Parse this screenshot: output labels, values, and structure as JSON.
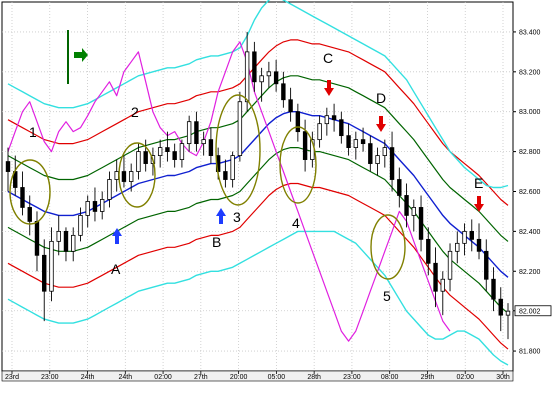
{
  "chart_data": {
    "type": "candlestick",
    "y_axis_ticks": [
      "83.400",
      "83.200",
      "83.000",
      "82.800",
      "82.600",
      "82.400",
      "82.200",
      "82.002",
      "81.800"
    ],
    "ylim": [
      81.7,
      83.55
    ],
    "grid": true,
    "last_price": "82.002",
    "x_axis_ticks": [
      "23rd",
      "23:00",
      "24th",
      "24th",
      "02:00",
      "27th",
      "20:00",
      "05:00",
      "28th",
      "23:00",
      "08:00",
      "29th",
      "02:00",
      "30th"
    ],
    "annotations": [
      "1",
      "2",
      "A",
      "B",
      "3",
      "C",
      "D",
      "4",
      "5",
      "E"
    ],
    "candles": [
      [
        82.75,
        82.82,
        82.6,
        82.7
      ],
      [
        82.7,
        82.78,
        82.58,
        82.62
      ],
      [
        82.62,
        82.7,
        82.48,
        82.52
      ],
      [
        82.52,
        82.58,
        82.38,
        82.45
      ],
      [
        82.45,
        82.5,
        82.2,
        82.28
      ],
      [
        82.28,
        82.36,
        81.95,
        82.1
      ],
      [
        82.1,
        82.42,
        82.05,
        82.35
      ],
      [
        82.35,
        82.48,
        82.28,
        82.4
      ],
      [
        82.4,
        82.42,
        82.25,
        82.3
      ],
      [
        82.3,
        82.42,
        82.25,
        82.38
      ],
      [
        82.38,
        82.52,
        82.35,
        82.48
      ],
      [
        82.48,
        82.58,
        82.42,
        82.55
      ],
      [
        82.55,
        82.62,
        82.45,
        82.5
      ],
      [
        82.5,
        82.6,
        82.46,
        82.56
      ],
      [
        82.56,
        82.7,
        82.52,
        82.66
      ],
      [
        82.66,
        82.76,
        82.6,
        82.7
      ],
      [
        82.7,
        82.78,
        82.62,
        82.65
      ],
      [
        82.65,
        82.74,
        82.6,
        82.7
      ],
      [
        82.7,
        82.84,
        82.66,
        82.8
      ],
      [
        82.8,
        82.86,
        82.7,
        82.74
      ],
      [
        82.74,
        82.82,
        82.68,
        82.78
      ],
      [
        82.78,
        82.86,
        82.72,
        82.82
      ],
      [
        82.82,
        82.9,
        82.75,
        82.8
      ],
      [
        82.8,
        82.84,
        82.72,
        82.76
      ],
      [
        82.76,
        82.86,
        82.72,
        82.84
      ],
      [
        82.84,
        82.98,
        82.8,
        82.95
      ],
      [
        82.95,
        83.0,
        82.8,
        82.84
      ],
      [
        82.84,
        82.9,
        82.78,
        82.86
      ],
      [
        82.86,
        82.92,
        82.74,
        82.78
      ],
      [
        82.78,
        82.82,
        82.66,
        82.7
      ],
      [
        82.7,
        82.76,
        82.62,
        82.66
      ],
      [
        82.66,
        82.8,
        82.62,
        82.78
      ],
      [
        82.78,
        83.1,
        82.75,
        83.05
      ],
      [
        83.05,
        83.4,
        83.0,
        83.3
      ],
      [
        83.3,
        83.35,
        83.1,
        83.15
      ],
      [
        83.15,
        83.22,
        83.05,
        83.18
      ],
      [
        83.18,
        83.25,
        83.12,
        83.2
      ],
      [
        83.2,
        83.26,
        83.1,
        83.14
      ],
      [
        83.14,
        83.2,
        83.02,
        83.06
      ],
      [
        83.06,
        83.12,
        82.95,
        83.0
      ],
      [
        83.0,
        83.04,
        82.85,
        82.9
      ],
      [
        82.9,
        82.96,
        82.7,
        82.76
      ],
      [
        82.76,
        82.9,
        82.72,
        82.86
      ],
      [
        82.86,
        82.98,
        82.82,
        82.94
      ],
      [
        82.94,
        83.02,
        82.88,
        82.98
      ],
      [
        82.98,
        83.04,
        82.9,
        82.96
      ],
      [
        82.96,
        83.0,
        82.84,
        82.88
      ],
      [
        82.88,
        82.94,
        82.78,
        82.82
      ],
      [
        82.82,
        82.9,
        82.76,
        82.86
      ],
      [
        82.86,
        82.92,
        82.8,
        82.84
      ],
      [
        82.84,
        82.88,
        82.7,
        82.74
      ],
      [
        82.74,
        82.82,
        82.68,
        82.78
      ],
      [
        82.78,
        82.86,
        82.72,
        82.82
      ],
      [
        82.82,
        82.9,
        82.6,
        82.66
      ],
      [
        82.66,
        82.72,
        82.52,
        82.58
      ],
      [
        82.58,
        82.64,
        82.42,
        82.48
      ],
      [
        82.48,
        82.56,
        82.4,
        82.52
      ],
      [
        82.52,
        82.58,
        82.3,
        82.36
      ],
      [
        82.36,
        82.42,
        82.18,
        82.24
      ],
      [
        82.24,
        82.32,
        82.02,
        82.1
      ],
      [
        82.1,
        82.2,
        81.98,
        82.16
      ],
      [
        82.16,
        82.34,
        82.1,
        82.3
      ],
      [
        82.3,
        82.4,
        82.24,
        82.34
      ],
      [
        82.34,
        82.44,
        82.28,
        82.4
      ],
      [
        82.4,
        82.46,
        82.3,
        82.36
      ],
      [
        82.36,
        82.44,
        82.26,
        82.3
      ],
      [
        82.3,
        82.36,
        82.1,
        82.16
      ],
      [
        82.16,
        82.22,
        82.0,
        82.06
      ],
      [
        82.06,
        82.12,
        81.9,
        81.98
      ],
      [
        81.98,
        82.04,
        81.86,
        82.0
      ]
    ],
    "series": [
      {
        "values": [
          82.6,
          82.58,
          82.56,
          82.54,
          82.52,
          82.5,
          82.49,
          82.48,
          82.48,
          82.48,
          82.49,
          82.5,
          82.52,
          82.54,
          82.56,
          82.58,
          82.6,
          82.62,
          82.64,
          82.65,
          82.66,
          82.67,
          82.68,
          82.68,
          82.69,
          82.7,
          82.72,
          82.73,
          82.74,
          82.74,
          82.75,
          82.76,
          82.78,
          82.82,
          82.86,
          82.9,
          82.94,
          82.97,
          82.99,
          83.0,
          83.0,
          82.99,
          82.98,
          82.98,
          82.97,
          82.96,
          82.95,
          82.94,
          82.92,
          82.9,
          82.88,
          82.86,
          82.84,
          82.8,
          82.76,
          82.72,
          82.68,
          82.63,
          82.58,
          82.53,
          82.48,
          82.44,
          82.41,
          82.38,
          82.35,
          82.32,
          82.28,
          82.24,
          82.2,
          82.17
        ]
      },
      {
        "values": [
          82.78,
          82.76,
          82.74,
          82.72,
          82.7,
          82.68,
          82.67,
          82.66,
          82.66,
          82.66,
          82.67,
          82.68,
          82.7,
          82.72,
          82.74,
          82.76,
          82.78,
          82.8,
          82.82,
          82.83,
          82.84,
          82.85,
          82.86,
          82.86,
          82.87,
          82.88,
          82.9,
          82.91,
          82.92,
          82.92,
          82.93,
          82.94,
          82.96,
          83.0,
          83.04,
          83.08,
          83.12,
          83.15,
          83.17,
          83.18,
          83.18,
          83.17,
          83.16,
          83.16,
          83.15,
          83.14,
          83.13,
          83.12,
          83.1,
          83.08,
          83.06,
          83.04,
          83.02,
          82.98,
          82.94,
          82.9,
          82.86,
          82.81,
          82.76,
          82.71,
          82.66,
          82.62,
          82.59,
          82.56,
          82.53,
          82.5,
          82.46,
          82.42,
          82.38,
          82.35
        ]
      },
      {
        "values": [
          82.42,
          82.4,
          82.38,
          82.36,
          82.34,
          82.32,
          82.31,
          82.3,
          82.3,
          82.3,
          82.31,
          82.32,
          82.34,
          82.36,
          82.38,
          82.4,
          82.42,
          82.44,
          82.46,
          82.47,
          82.48,
          82.49,
          82.5,
          82.5,
          82.51,
          82.52,
          82.54,
          82.55,
          82.56,
          82.56,
          82.57,
          82.58,
          82.6,
          82.64,
          82.68,
          82.72,
          82.76,
          82.79,
          82.81,
          82.82,
          82.82,
          82.81,
          82.8,
          82.8,
          82.79,
          82.78,
          82.77,
          82.76,
          82.74,
          82.72,
          82.7,
          82.68,
          82.66,
          82.62,
          82.58,
          82.54,
          82.5,
          82.45,
          82.4,
          82.35,
          82.3,
          82.26,
          82.23,
          82.2,
          82.17,
          82.14,
          82.1,
          82.06,
          82.02,
          81.99
        ]
      },
      {
        "values": [
          82.96,
          82.94,
          82.92,
          82.9,
          82.88,
          82.86,
          82.85,
          82.84,
          82.84,
          82.84,
          82.85,
          82.86,
          82.88,
          82.9,
          82.92,
          82.94,
          82.96,
          82.98,
          83.0,
          83.01,
          83.02,
          83.03,
          83.04,
          83.04,
          83.05,
          83.06,
          83.08,
          83.09,
          83.1,
          83.1,
          83.11,
          83.12,
          83.14,
          83.18,
          83.22,
          83.26,
          83.3,
          83.33,
          83.35,
          83.36,
          83.36,
          83.35,
          83.34,
          83.34,
          83.33,
          83.32,
          83.31,
          83.3,
          83.28,
          83.26,
          83.24,
          83.22,
          83.2,
          83.16,
          83.12,
          83.08,
          83.04,
          82.99,
          82.94,
          82.89,
          82.84,
          82.8,
          82.77,
          82.74,
          82.71,
          82.68,
          82.64,
          82.6,
          82.56,
          82.53
        ]
      },
      {
        "values": [
          82.24,
          82.22,
          82.2,
          82.18,
          82.16,
          82.14,
          82.13,
          82.12,
          82.12,
          82.12,
          82.13,
          82.14,
          82.16,
          82.18,
          82.2,
          82.22,
          82.24,
          82.26,
          82.28,
          82.29,
          82.3,
          82.31,
          82.32,
          82.32,
          82.33,
          82.34,
          82.36,
          82.37,
          82.38,
          82.38,
          82.39,
          82.4,
          82.42,
          82.46,
          82.5,
          82.54,
          82.58,
          82.61,
          82.63,
          82.64,
          82.64,
          82.63,
          82.62,
          82.62,
          82.61,
          82.6,
          82.59,
          82.58,
          82.56,
          82.54,
          82.52,
          82.5,
          82.48,
          82.44,
          82.4,
          82.36,
          82.32,
          82.27,
          82.22,
          82.17,
          82.12,
          82.08,
          82.05,
          82.02,
          81.99,
          81.96,
          81.92,
          81.88,
          81.84,
          81.81
        ]
      },
      {
        "values": [
          83.14,
          83.12,
          83.1,
          83.08,
          83.06,
          83.04,
          83.03,
          83.02,
          83.02,
          83.02,
          83.03,
          83.04,
          83.06,
          83.08,
          83.1,
          83.12,
          83.14,
          83.16,
          83.18,
          83.19,
          83.2,
          83.21,
          83.22,
          83.22,
          83.23,
          83.24,
          83.26,
          83.27,
          83.28,
          83.28,
          83.29,
          83.3,
          83.32,
          83.38,
          83.46,
          83.52,
          83.56,
          83.58,
          83.56,
          83.54,
          83.52,
          83.5,
          83.48,
          83.46,
          83.44,
          83.42,
          83.4,
          83.38,
          83.36,
          83.34,
          83.32,
          83.3,
          83.28,
          83.24,
          83.2,
          83.16,
          83.1,
          83.04,
          82.98,
          82.92,
          82.86,
          82.8,
          82.76,
          82.72,
          82.69,
          82.66,
          82.63,
          82.62,
          82.62,
          82.63
        ]
      },
      {
        "values": [
          82.06,
          82.04,
          82.02,
          82.0,
          81.98,
          81.96,
          81.95,
          81.94,
          81.94,
          81.94,
          81.95,
          81.96,
          81.98,
          82.0,
          82.02,
          82.04,
          82.06,
          82.08,
          82.1,
          82.11,
          82.12,
          82.13,
          82.14,
          82.14,
          82.15,
          82.16,
          82.18,
          82.19,
          82.2,
          82.2,
          82.21,
          82.22,
          82.24,
          82.26,
          82.28,
          82.3,
          82.32,
          82.34,
          82.36,
          82.38,
          82.4,
          82.4,
          82.4,
          82.4,
          82.4,
          82.4,
          82.38,
          82.36,
          82.34,
          82.3,
          82.26,
          82.22,
          82.18,
          82.12,
          82.06,
          82.0,
          81.96,
          81.92,
          81.88,
          81.86,
          81.86,
          81.88,
          81.9,
          81.9,
          81.88,
          81.86,
          81.82,
          81.78,
          81.75,
          81.73
        ]
      },
      {
        "values": [
          82.8,
          82.9,
          83.0,
          83.05,
          82.95,
          82.85,
          82.8,
          82.9,
          82.95,
          82.9,
          82.92,
          82.98,
          83.05,
          83.1,
          83.15,
          83.08,
          83.2,
          83.25,
          83.3,
          83.15,
          83.0,
          82.92,
          82.88,
          82.9,
          82.84,
          82.8,
          82.78,
          82.85,
          82.95,
          83.1,
          83.2,
          83.3,
          83.35,
          83.25,
          83.1,
          83.0,
          82.9,
          82.8,
          82.7,
          82.6,
          82.5,
          82.4,
          82.3,
          82.2,
          82.1,
          82.0,
          81.9,
          81.85,
          81.9,
          82.0,
          82.1,
          82.2,
          82.3,
          82.4,
          82.5,
          82.45,
          82.35,
          82.25,
          82.15,
          82.05,
          81.95,
          81.9
        ]
      }
    ]
  }
}
